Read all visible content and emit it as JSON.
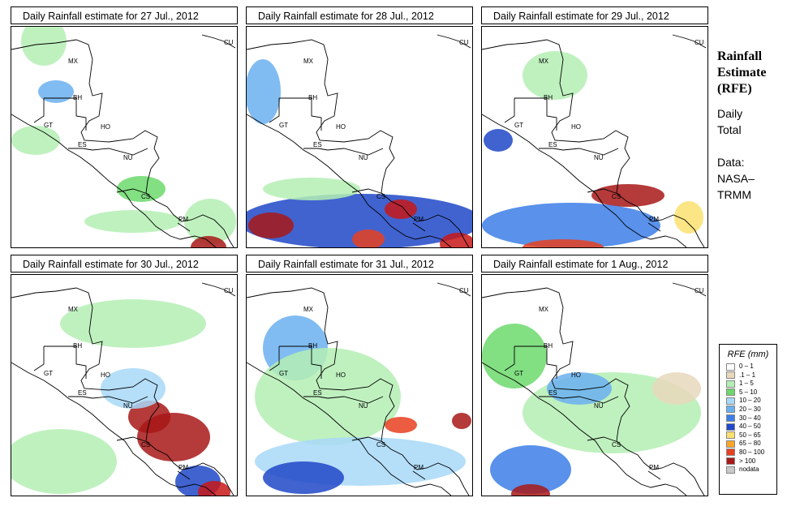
{
  "panels": [
    {
      "title": "Daily Rainfall estimate for  27 Jul., 2012",
      "id": "jul27",
      "blobs": [
        {
          "x": 40,
          "y": 18,
          "rx": 28,
          "ry": 30,
          "level": 2
        },
        {
          "x": 55,
          "y": 80,
          "rx": 22,
          "ry": 14,
          "level": 5
        },
        {
          "x": 30,
          "y": 140,
          "rx": 30,
          "ry": 18,
          "level": 2
        },
        {
          "x": 160,
          "y": 200,
          "rx": 30,
          "ry": 16,
          "level": 3
        },
        {
          "x": 245,
          "y": 240,
          "rx": 32,
          "ry": 28,
          "level": 2
        },
        {
          "x": 243,
          "y": 272,
          "rx": 22,
          "ry": 14,
          "level": 13
        },
        {
          "x": 150,
          "y": 240,
          "rx": 60,
          "ry": 14,
          "level": 2
        }
      ]
    },
    {
      "title": "Daily Rainfall estimate for  28 Jul., 2012",
      "id": "jul28",
      "blobs": [
        {
          "x": 20,
          "y": 80,
          "rx": 22,
          "ry": 40,
          "level": 5
        },
        {
          "x": 140,
          "y": 240,
          "rx": 150,
          "ry": 34,
          "level": 7
        },
        {
          "x": 30,
          "y": 245,
          "rx": 28,
          "ry": 16,
          "level": 11
        },
        {
          "x": 190,
          "y": 225,
          "rx": 20,
          "ry": 12,
          "level": 12
        },
        {
          "x": 260,
          "y": 268,
          "rx": 22,
          "ry": 14,
          "level": 12
        },
        {
          "x": 150,
          "y": 262,
          "rx": 20,
          "ry": 12,
          "level": 10
        },
        {
          "x": 80,
          "y": 200,
          "rx": 60,
          "ry": 14,
          "level": 2
        }
      ]
    },
    {
      "title": "Daily Rainfall estimate for  29 Jul., 2012",
      "id": "jul29",
      "blobs": [
        {
          "x": 20,
          "y": 140,
          "rx": 18,
          "ry": 14,
          "level": 7
        },
        {
          "x": 180,
          "y": 208,
          "rx": 45,
          "ry": 14,
          "level": 11
        },
        {
          "x": 110,
          "y": 245,
          "rx": 110,
          "ry": 28,
          "level": 6
        },
        {
          "x": 100,
          "y": 272,
          "rx": 50,
          "ry": 10,
          "level": 10
        },
        {
          "x": 255,
          "y": 235,
          "rx": 18,
          "ry": 20,
          "level": 8
        },
        {
          "x": 90,
          "y": 60,
          "rx": 40,
          "ry": 30,
          "level": 2
        }
      ]
    },
    {
      "title": "Daily Rainfall estimate for  30 Jul., 2012",
      "id": "jul30",
      "blobs": [
        {
          "x": 200,
          "y": 200,
          "rx": 45,
          "ry": 30,
          "level": 13
        },
        {
          "x": 170,
          "y": 175,
          "rx": 26,
          "ry": 20,
          "level": 11
        },
        {
          "x": 230,
          "y": 255,
          "rx": 28,
          "ry": 20,
          "level": 7
        },
        {
          "x": 150,
          "y": 140,
          "rx": 40,
          "ry": 25,
          "level": 4
        },
        {
          "x": 60,
          "y": 230,
          "rx": 70,
          "ry": 40,
          "level": 2
        },
        {
          "x": 150,
          "y": 60,
          "rx": 90,
          "ry": 30,
          "level": 2
        },
        {
          "x": 250,
          "y": 268,
          "rx": 20,
          "ry": 14,
          "level": 12
        }
      ]
    },
    {
      "title": "Daily Rainfall estimate for  31 Jul., 2012",
      "id": "jul31",
      "blobs": [
        {
          "x": 60,
          "y": 90,
          "rx": 40,
          "ry": 40,
          "level": 5
        },
        {
          "x": 100,
          "y": 150,
          "rx": 90,
          "ry": 60,
          "level": 2
        },
        {
          "x": 140,
          "y": 230,
          "rx": 130,
          "ry": 30,
          "level": 4
        },
        {
          "x": 190,
          "y": 185,
          "rx": 20,
          "ry": 10,
          "level": 10
        },
        {
          "x": 265,
          "y": 180,
          "rx": 12,
          "ry": 10,
          "level": 11
        },
        {
          "x": 70,
          "y": 250,
          "rx": 50,
          "ry": 20,
          "level": 7
        }
      ]
    },
    {
      "title": "Daily Rainfall estimate for  1 Aug., 2012",
      "id": "aug01",
      "blobs": [
        {
          "x": 40,
          "y": 100,
          "rx": 40,
          "ry": 40,
          "level": 3
        },
        {
          "x": 160,
          "y": 170,
          "rx": 110,
          "ry": 50,
          "level": 2
        },
        {
          "x": 120,
          "y": 140,
          "rx": 40,
          "ry": 20,
          "level": 5
        },
        {
          "x": 60,
          "y": 240,
          "rx": 50,
          "ry": 30,
          "level": 6
        },
        {
          "x": 60,
          "y": 270,
          "rx": 24,
          "ry": 12,
          "level": 11
        },
        {
          "x": 240,
          "y": 140,
          "rx": 30,
          "ry": 20,
          "level": 1
        }
      ]
    }
  ],
  "country_labels": [
    "MX",
    "CU",
    "BH",
    "GT",
    "HO",
    "ES",
    "NU",
    "CS",
    "PM"
  ],
  "side": {
    "title_lines": [
      "Rainfall",
      "Estimate",
      "(RFE)"
    ],
    "total_lines": [
      "Daily",
      "Total"
    ],
    "data_lines": [
      "Data:",
      "NASA–",
      "TRMM"
    ]
  },
  "legend": {
    "title": "RFE (mm)",
    "items": [
      {
        "label": "0 – 1",
        "color": "#ffffff"
      },
      {
        "label": ".1 – 1",
        "color": "#e8d8bc"
      },
      {
        "label": "1 – 5",
        "color": "#b4efb4"
      },
      {
        "label": "5 – 10",
        "color": "#6cd96c"
      },
      {
        "label": "10 – 20",
        "color": "#a8d8f8"
      },
      {
        "label": "20 – 30",
        "color": "#6ab0f0"
      },
      {
        "label": "30 – 40",
        "color": "#3c7ee8"
      },
      {
        "label": "40 – 50",
        "color": "#2048c8"
      },
      {
        "label": "50 – 65",
        "color": "#fce070"
      },
      {
        "label": "65 – 80",
        "color": "#fca628"
      },
      {
        "label": "80 – 100",
        "color": "#e84020"
      },
      {
        "label": "> 100",
        "color": "#a81818"
      },
      {
        "label": "nodata",
        "color": "#c8c8c8"
      }
    ],
    "level_colors": [
      "#ffffff",
      "#e8d8bc",
      "#b4efb4",
      "#6cd96c",
      "#a8d8f8",
      "#6ab0f0",
      "#3c7ee8",
      "#2048c8",
      "#fce070",
      "#fca628",
      "#e84020",
      "#a81818",
      "#c81818",
      "#a81818"
    ]
  }
}
